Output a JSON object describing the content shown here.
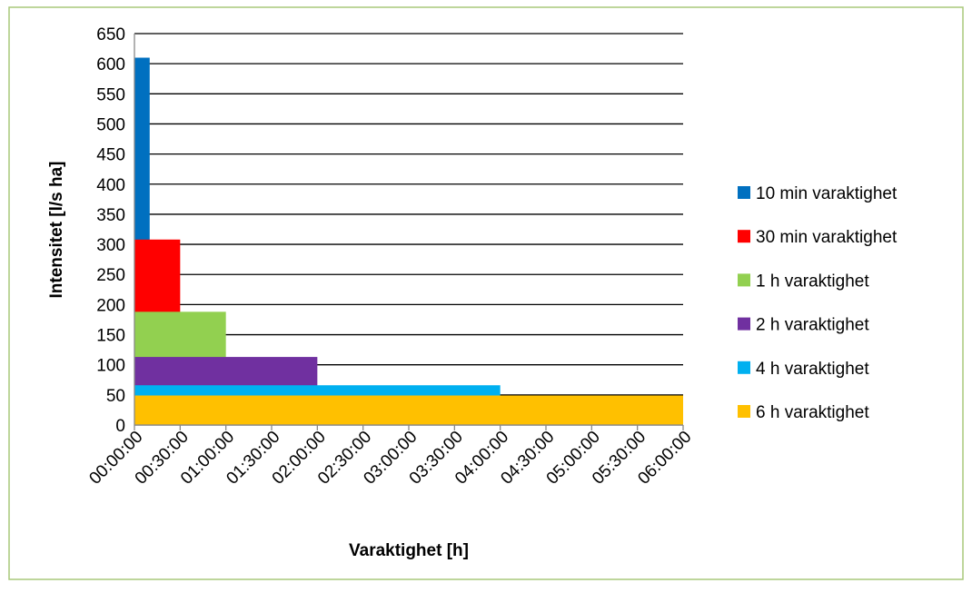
{
  "chart_data": {
    "type": "bar",
    "y_label": "Intensitet [l/s ha]",
    "x_label": "Varaktighet [h]",
    "xlim": [
      0,
      360
    ],
    "xticks": [
      {
        "value": 0,
        "label": "00:00:00"
      },
      {
        "value": 30,
        "label": "00:30:00"
      },
      {
        "value": 60,
        "label": "01:00:00"
      },
      {
        "value": 90,
        "label": "01:30:00"
      },
      {
        "value": 120,
        "label": "02:00:00"
      },
      {
        "value": 150,
        "label": "02:30:00"
      },
      {
        "value": 180,
        "label": "03:00:00"
      },
      {
        "value": 210,
        "label": "03:30:00"
      },
      {
        "value": 240,
        "label": "04:00:00"
      },
      {
        "value": 270,
        "label": "04:30:00"
      },
      {
        "value": 300,
        "label": "05:00:00"
      },
      {
        "value": 330,
        "label": "05:30:00"
      },
      {
        "value": 360,
        "label": "06:00:00"
      }
    ],
    "ylim": [
      0,
      650
    ],
    "yticks": [
      0,
      50,
      100,
      150,
      200,
      250,
      300,
      350,
      400,
      450,
      500,
      550,
      600,
      650
    ],
    "grid": true,
    "legend": "right",
    "series": [
      {
        "name": "10 min varaktighet",
        "color": "#0070c0",
        "duration": 10,
        "values": [
          610
        ]
      },
      {
        "name": "30 min varaktighet",
        "color": "#ff0000",
        "duration": 30,
        "values": [
          308
        ]
      },
      {
        "name": "1 h varaktighet",
        "color": "#92d050",
        "duration": 60,
        "values": [
          188
        ]
      },
      {
        "name": "2 h varaktighet",
        "color": "#7030a0",
        "duration": 120,
        "values": [
          113
        ]
      },
      {
        "name": "4 h varaktighet",
        "color": "#00b0f0",
        "duration": 240,
        "values": [
          66
        ]
      },
      {
        "name": "6 h varaktighet",
        "color": "#ffc000",
        "duration": 360,
        "values": [
          49
        ]
      }
    ]
  }
}
